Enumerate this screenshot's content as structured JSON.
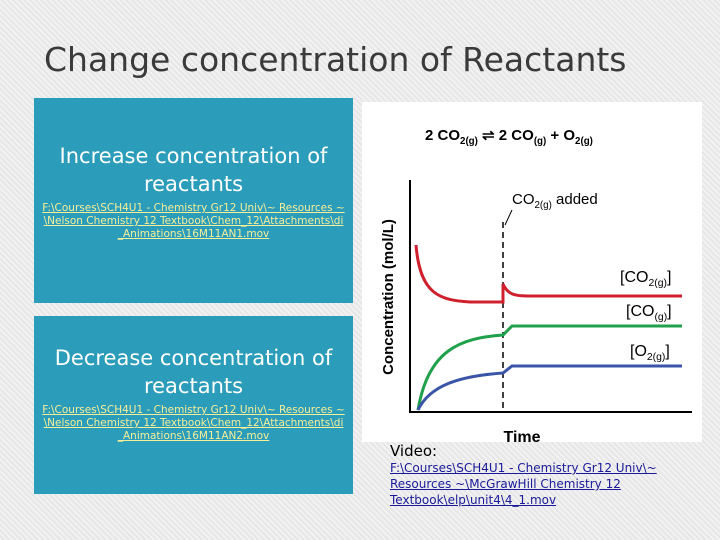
{
  "header": {
    "title": "Change concentration of Reactants"
  },
  "boxes": [
    {
      "heading": "Increase concentration of reactants",
      "link": "F:\\Courses\\SCH4U1 - Chemistry Gr12 Univ\\~ Resources ~\\Nelson Chemistry 12 Textbook\\Chem_12\\Attachments\\di_Animations\\16M11AN1.mov"
    },
    {
      "heading": "Decrease concentration of reactants",
      "link": "F:\\Courses\\SCH4U1 - Chemistry Gr12 Univ\\~ Resources ~\\Nelson Chemistry 12 Textbook\\Chem_12\\Attachments\\di_Animations\\16M11AN2.mov"
    }
  ],
  "figure": {
    "equation": [
      "2 CO",
      "2(g)",
      " ⇌ 2 CO",
      "(g)",
      " + O",
      "2(g)"
    ],
    "annotation": [
      "CO",
      "2(g)",
      " added"
    ],
    "y_label": "Concentration (mol/L)",
    "x_label": "Time",
    "curve_labels": [
      [
        "[CO",
        "2(g)",
        "]"
      ],
      [
        "[CO",
        "(g)",
        "]"
      ],
      [
        "[O",
        "2(g)",
        "]"
      ]
    ]
  },
  "video": {
    "label": "Video:",
    "link": "F:\\Courses\\SCH4U1 - Chemistry Gr12 Univ\\~ Resources ~\\McGrawHill Chemistry 12 Textbook\\elp\\unit4\\4_1.mov"
  }
}
